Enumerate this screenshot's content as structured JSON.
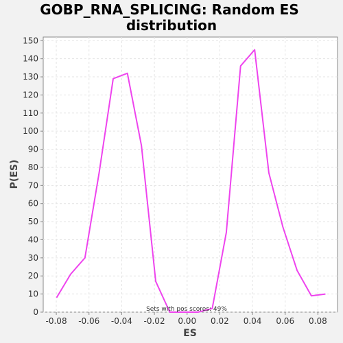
{
  "chart_data": {
    "type": "line",
    "title_line1": "GOBP_RNA_SPLICING: Random ES",
    "title_line2": "distribution",
    "xlabel": "ES",
    "ylabel": "P(ES)",
    "xlim": [
      -0.088,
      0.092
    ],
    "ylim": [
      0,
      152
    ],
    "x_ticks": [
      -0.08,
      -0.06,
      -0.04,
      -0.02,
      0.0,
      0.02,
      0.04,
      0.06,
      0.08
    ],
    "x_tick_labels": [
      "-0.08",
      "-0.06",
      "-0.04",
      "-0.02",
      "0.00",
      "0.02",
      "0.04",
      "0.06",
      "0.08"
    ],
    "y_ticks": [
      0,
      10,
      20,
      30,
      40,
      50,
      60,
      70,
      80,
      90,
      100,
      110,
      120,
      130,
      140,
      150
    ],
    "y_tick_labels": [
      "0",
      "10",
      "20",
      "30",
      "40",
      "50",
      "60",
      "70",
      "80",
      "90",
      "100",
      "110",
      "120",
      "130",
      "140",
      "150"
    ],
    "grid": true,
    "annotation": "Sets with pos scores: 49%",
    "series": [
      {
        "color": "#ee44ee",
        "x": [
          -0.0798,
          -0.0712,
          -0.0625,
          -0.0538,
          -0.0452,
          -0.0365,
          -0.0279,
          -0.0192,
          -0.0106,
          -0.0019,
          0.0067,
          0.0154,
          0.024,
          0.0327,
          0.0413,
          0.05,
          0.0586,
          0.0673,
          0.076,
          0.0846
        ],
        "y": [
          8,
          21,
          30,
          77,
          129,
          132,
          92,
          17,
          0,
          0,
          0,
          2,
          44,
          136,
          145,
          77,
          47,
          23,
          9,
          10
        ]
      }
    ]
  }
}
